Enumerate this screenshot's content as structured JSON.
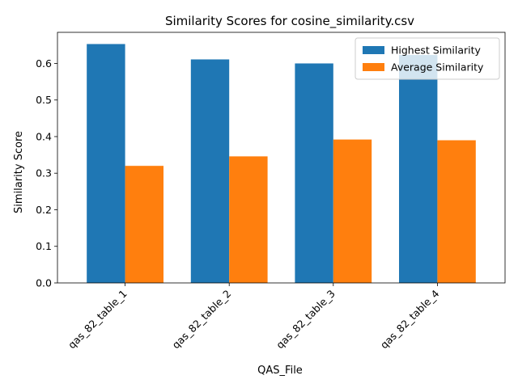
{
  "chart_data": {
    "type": "bar",
    "title": "Similarity Scores for cosine_similarity.csv",
    "xlabel": "QAS_File",
    "ylabel": "Similarity Score",
    "categories": [
      "qas_82_table_1",
      "qas_82_table_2",
      "qas_82_table_3",
      "qas_82_table_4"
    ],
    "series": [
      {
        "name": "Highest Similarity",
        "color": "#1f77b4",
        "values": [
          0.653,
          0.611,
          0.6,
          0.623
        ]
      },
      {
        "name": "Average Similarity",
        "color": "#ff7f0e",
        "values": [
          0.32,
          0.346,
          0.392,
          0.39
        ]
      }
    ],
    "ylim": [
      0,
      0.685
    ],
    "yticks": [
      "0.0",
      "0.1",
      "0.2",
      "0.3",
      "0.4",
      "0.5",
      "0.6"
    ],
    "legend_position": "top-right",
    "grid": false
  }
}
